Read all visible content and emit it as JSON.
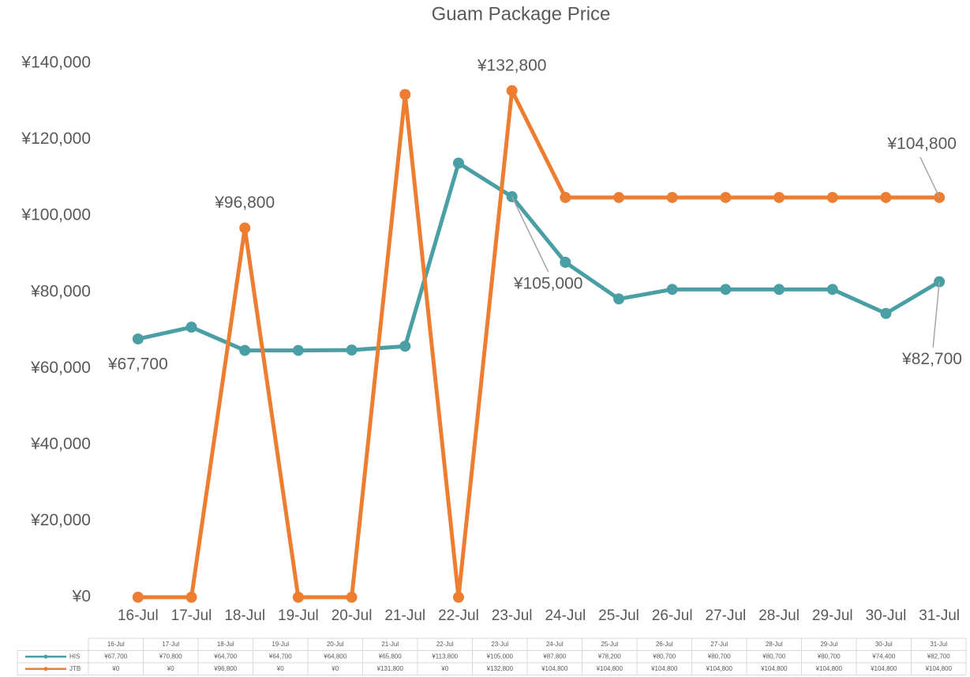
{
  "chart_data": {
    "type": "line",
    "title": "Guam Package Price",
    "categories": [
      "16-Jul",
      "17-Jul",
      "18-Jul",
      "19-Jul",
      "20-Jul",
      "21-Jul",
      "22-Jul",
      "23-Jul",
      "24-Jul",
      "25-Jul",
      "26-Jul",
      "27-Jul",
      "28-Jul",
      "29-Jul",
      "30-Jul",
      "31-Jul"
    ],
    "series": [
      {
        "name": "HIS",
        "color": "#4a9fa5",
        "values": [
          67700,
          70800,
          64700,
          64700,
          64800,
          65800,
          113800,
          105000,
          87800,
          78200,
          80700,
          80700,
          80700,
          80700,
          74400,
          82700
        ],
        "value_labels": [
          "¥67,700",
          "¥70,800",
          "¥64,700",
          "¥64,700",
          "¥64,800",
          "¥65,800",
          "¥113,800",
          "¥105,000",
          "¥87,800",
          "¥78,200",
          "¥80,700",
          "¥80,700",
          "¥80,700",
          "¥80,700",
          "¥74,400",
          "¥82,700"
        ]
      },
      {
        "name": "JTB",
        "color": "#ed7d31",
        "values": [
          0,
          0,
          96800,
          0,
          0,
          131800,
          0,
          132800,
          104800,
          104800,
          104800,
          104800,
          104800,
          104800,
          104800,
          104800
        ],
        "value_labels": [
          "¥0",
          "¥0",
          "¥96,800",
          "¥0",
          "¥0",
          "¥131,800",
          "¥0",
          "¥132,800",
          "¥104,800",
          "¥104,800",
          "¥104,800",
          "¥104,800",
          "¥104,800",
          "¥104,800",
          "¥104,800",
          "¥104,800"
        ]
      }
    ],
    "ylim": [
      0,
      140000
    ],
    "yticks": [
      {
        "value": 0,
        "label": "¥0"
      },
      {
        "value": 20000,
        "label": "¥20,000"
      },
      {
        "value": 40000,
        "label": "¥40,000"
      },
      {
        "value": 60000,
        "label": "¥60,000"
      },
      {
        "value": 80000,
        "label": "¥80,000"
      },
      {
        "value": 100000,
        "label": "¥100,000"
      },
      {
        "value": 120000,
        "label": "¥120,000"
      },
      {
        "value": 140000,
        "label": "¥140,000"
      }
    ],
    "grid": false,
    "data_table": true
  }
}
